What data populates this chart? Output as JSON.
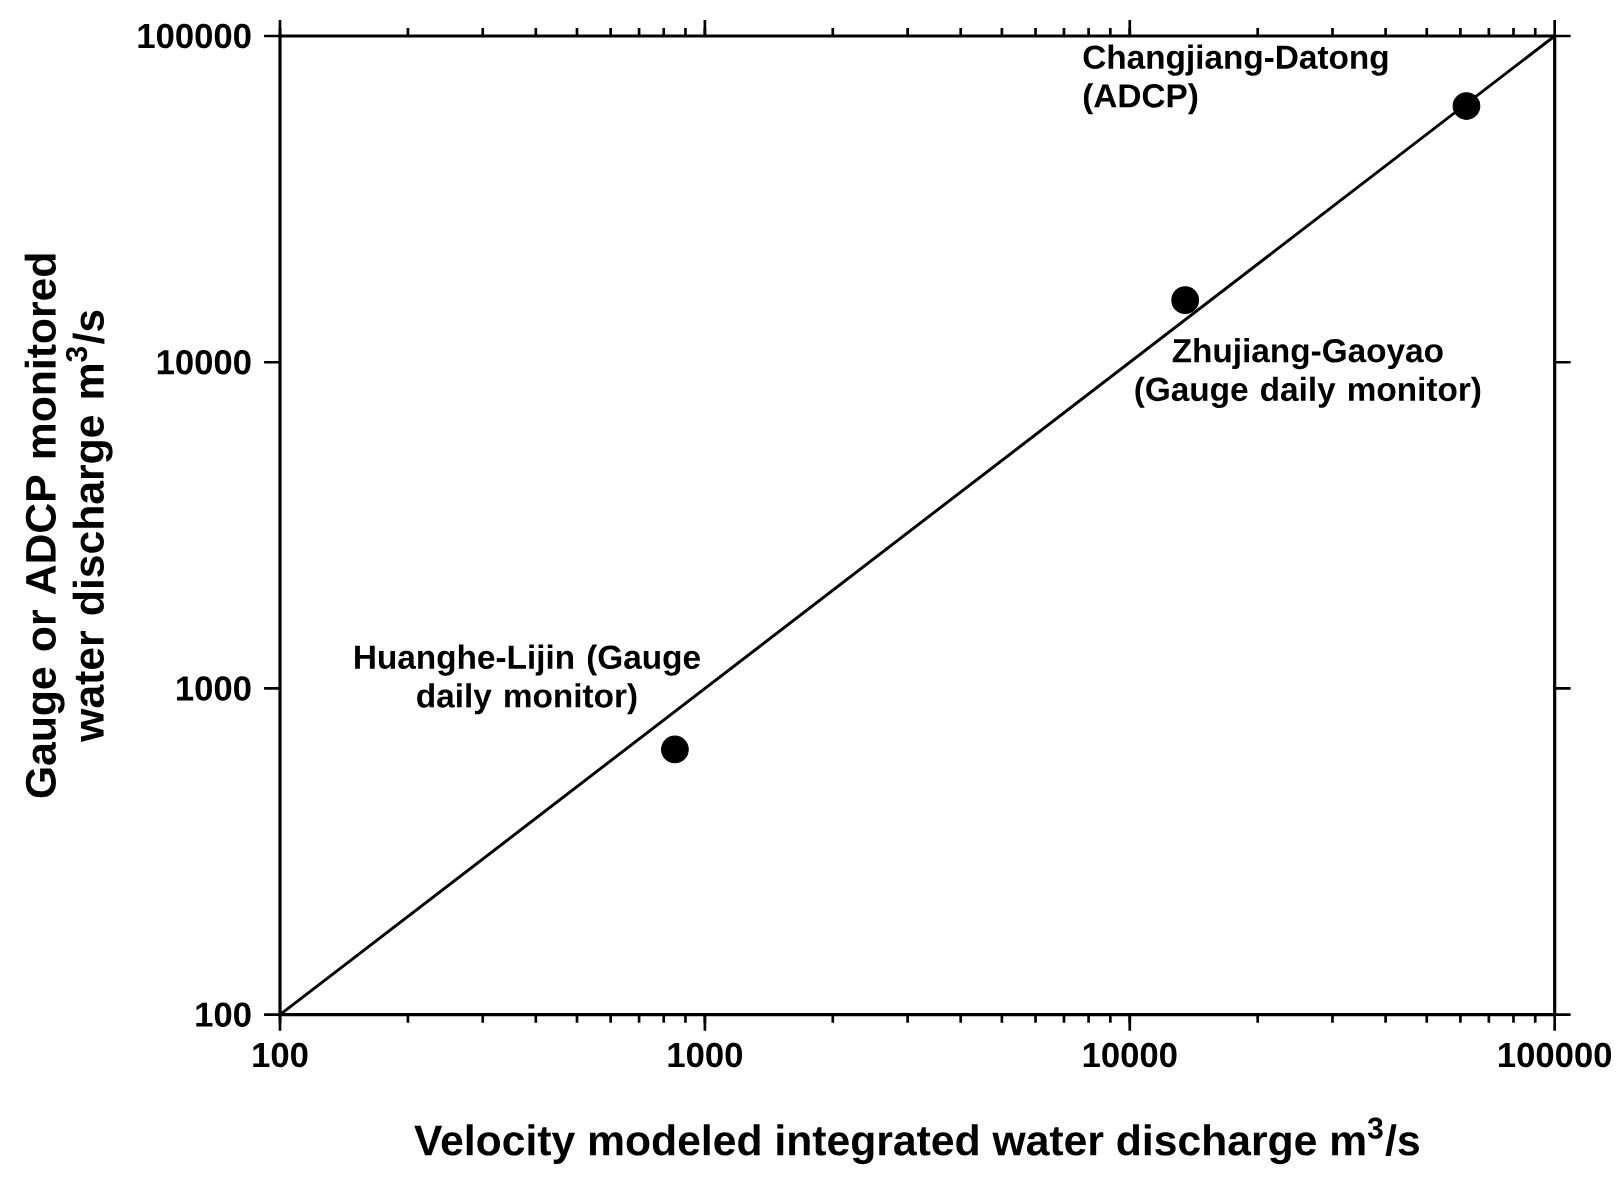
{
  "chart_data": {
    "type": "scatter",
    "xlabel": "Velocity modeled integrated water discharge m$^{3}$/s",
    "ylabel": "Gauge or ADCP monitored water discharge m$^{3}$/s",
    "log": "xy",
    "xlim": [
      100,
      100000
    ],
    "ylim": [
      100,
      100000
    ],
    "xticks": [
      100,
      1000,
      10000,
      100000
    ],
    "yticks": [
      100,
      1000,
      10000,
      100000
    ],
    "series": [
      {
        "color": "#000000",
        "marker": "circle",
        "x": [
          850,
          13500,
          62000
        ],
        "values": [
          650,
          15500,
          61000
        ]
      },
      {
        "type": "line",
        "color": "#000000",
        "marker": "none",
        "x": [
          100,
          100000
        ],
        "values": [
          100,
          100000
        ]
      }
    ],
    "annotations": [
      {
        "text": "Huanghe-Lijin (Gauge daily monitor)",
        "x": 850,
        "y": 650
      },
      {
        "text": "Zhujiang-Gaoyao (Gauge daily monitor)",
        "x": 13500,
        "y": 15500
      },
      {
        "text": "Changjiang-Datong (ADCP)",
        "x": 62000,
        "y": 61000
      }
    ]
  }
}
